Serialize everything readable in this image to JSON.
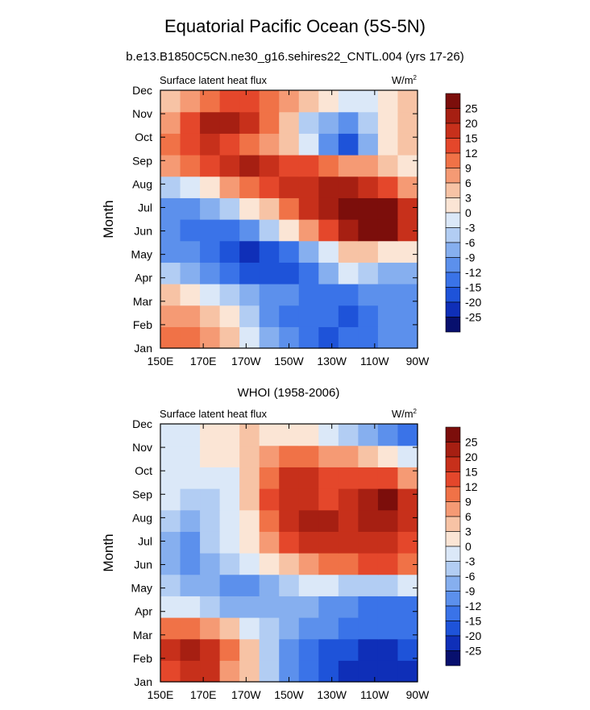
{
  "figure": {
    "title": "Equatorial Pacific Ocean (5S-5N)",
    "subtitle": "b.e13.B1850C5CN.ne30_g16.sehires22_CNTL.004 (yrs 17-26)"
  },
  "colorbar": {
    "colors": [
      "#08106e",
      "#0f2fb8",
      "#1e53d9",
      "#3a73e8",
      "#5c90ec",
      "#86afef",
      "#b2cdf3",
      "#dbe8f8",
      "#fbe5d5",
      "#f7c3a5",
      "#f59a74",
      "#f07247",
      "#e4472b",
      "#c7301b",
      "#a61f12",
      "#7c0e0b"
    ],
    "levels": [
      "-25",
      "-20",
      "-15",
      "-12",
      "-9",
      "-6",
      "-3",
      "0",
      "3",
      "6",
      "9",
      "12",
      "15",
      "20",
      "25"
    ],
    "level_values": [
      -25,
      -20,
      -15,
      -12,
      -9,
      -6,
      -3,
      0,
      3,
      6,
      9,
      12,
      15,
      20,
      25
    ]
  },
  "chart_data": [
    {
      "type": "heatmap",
      "title": "",
      "left_string": "Surface latent heat flux",
      "right_string": "W/m",
      "right_string_sup": "2",
      "xlabel": "",
      "ylabel": "Month",
      "x_ticks": [
        "150E",
        "170E",
        "170W",
        "150W",
        "130W",
        "110W",
        "90W"
      ],
      "x_values": [
        150,
        170,
        190,
        210,
        230,
        250,
        270
      ],
      "xlim": [
        150,
        270
      ],
      "y_ticks": [
        "Jan",
        "Feb",
        "Mar",
        "Apr",
        "May",
        "Jun",
        "Jul",
        "Aug",
        "Sep",
        "Oct",
        "Nov",
        "Dec"
      ],
      "ylim": [
        1,
        12
      ],
      "values": [
        [
          9,
          10,
          6,
          3,
          -3,
          -9,
          -12,
          -15,
          -20,
          -15,
          -15,
          -12,
          -12
        ],
        [
          6,
          6,
          3,
          0,
          -6,
          -12,
          -15,
          -15,
          -15,
          -20,
          -15,
          -12,
          -12
        ],
        [
          3,
          0,
          -3,
          -6,
          -9,
          -12,
          -12,
          -15,
          -15,
          -15,
          -12,
          -12,
          -12
        ],
        [
          -6,
          -9,
          -12,
          -15,
          -20,
          -20,
          -20,
          -15,
          -9,
          -3,
          -6,
          -9,
          -9
        ],
        [
          -12,
          -12,
          -15,
          -20,
          -25,
          -20,
          -15,
          -9,
          -3,
          3,
          3,
          0,
          0
        ],
        [
          -12,
          -15,
          -15,
          -15,
          -12,
          -6,
          0,
          6,
          12,
          20,
          25,
          25,
          15
        ],
        [
          -12,
          -12,
          -9,
          -6,
          0,
          3,
          9,
          15,
          20,
          25,
          28,
          25,
          15
        ],
        [
          -6,
          -3,
          0,
          6,
          9,
          12,
          15,
          15,
          20,
          20,
          15,
          12,
          6
        ],
        [
          6,
          9,
          12,
          15,
          20,
          15,
          12,
          12,
          9,
          6,
          6,
          3,
          0
        ],
        [
          9,
          12,
          15,
          12,
          9,
          6,
          3,
          -3,
          -12,
          -20,
          -9,
          0,
          3
        ],
        [
          6,
          12,
          20,
          20,
          15,
          9,
          3,
          -6,
          -9,
          -12,
          -6,
          0,
          3
        ],
        [
          3,
          6,
          9,
          12,
          12,
          9,
          6,
          3,
          0,
          -3,
          -3,
          0,
          3
        ]
      ]
    },
    {
      "type": "heatmap",
      "title": "WHOI (1958-2006)",
      "left_string": "Surface latent heat flux",
      "right_string": "W/m",
      "right_string_sup": "2",
      "xlabel": "",
      "ylabel": "Month",
      "x_ticks": [
        "150E",
        "170E",
        "170W",
        "150W",
        "130W",
        "110W",
        "90W"
      ],
      "x_values": [
        150,
        170,
        190,
        210,
        230,
        250,
        270
      ],
      "xlim": [
        150,
        270
      ],
      "y_ticks": [
        "Jan",
        "Feb",
        "Mar",
        "Apr",
        "May",
        "Jun",
        "Jul",
        "Aug",
        "Sep",
        "Oct",
        "Nov",
        "Dec"
      ],
      "ylim": [
        1,
        12
      ],
      "values": [
        [
          12,
          15,
          15,
          6,
          3,
          -6,
          -12,
          -15,
          -20,
          -25,
          -25,
          -25,
          -25
        ],
        [
          15,
          20,
          15,
          9,
          3,
          -6,
          -12,
          -15,
          -20,
          -20,
          -25,
          -25,
          -20
        ],
        [
          9,
          9,
          6,
          3,
          -3,
          -6,
          -9,
          -12,
          -12,
          -15,
          -15,
          -15,
          -15
        ],
        [
          -3,
          -3,
          -6,
          -9,
          -9,
          -9,
          -9,
          -9,
          -12,
          -12,
          -15,
          -15,
          -15
        ],
        [
          -6,
          -9,
          -9,
          -12,
          -12,
          -9,
          -6,
          -3,
          -3,
          -6,
          -6,
          -6,
          -3
        ],
        [
          -9,
          -12,
          -9,
          -6,
          -3,
          0,
          3,
          6,
          9,
          9,
          12,
          12,
          9
        ],
        [
          -9,
          -12,
          -6,
          -3,
          0,
          6,
          12,
          15,
          15,
          15,
          15,
          15,
          12
        ],
        [
          -6,
          -9,
          -6,
          -3,
          0,
          9,
          15,
          20,
          20,
          15,
          20,
          20,
          15
        ],
        [
          -3,
          -6,
          -6,
          -3,
          3,
          12,
          15,
          15,
          12,
          15,
          20,
          25,
          15
        ],
        [
          -3,
          -3,
          -3,
          -3,
          3,
          9,
          15,
          15,
          12,
          12,
          12,
          12,
          6
        ],
        [
          -3,
          -3,
          0,
          0,
          3,
          6,
          9,
          9,
          6,
          6,
          3,
          0,
          -3
        ],
        [
          -3,
          -3,
          0,
          0,
          3,
          0,
          0,
          0,
          -3,
          -6,
          -9,
          -12,
          -15
        ]
      ]
    }
  ]
}
